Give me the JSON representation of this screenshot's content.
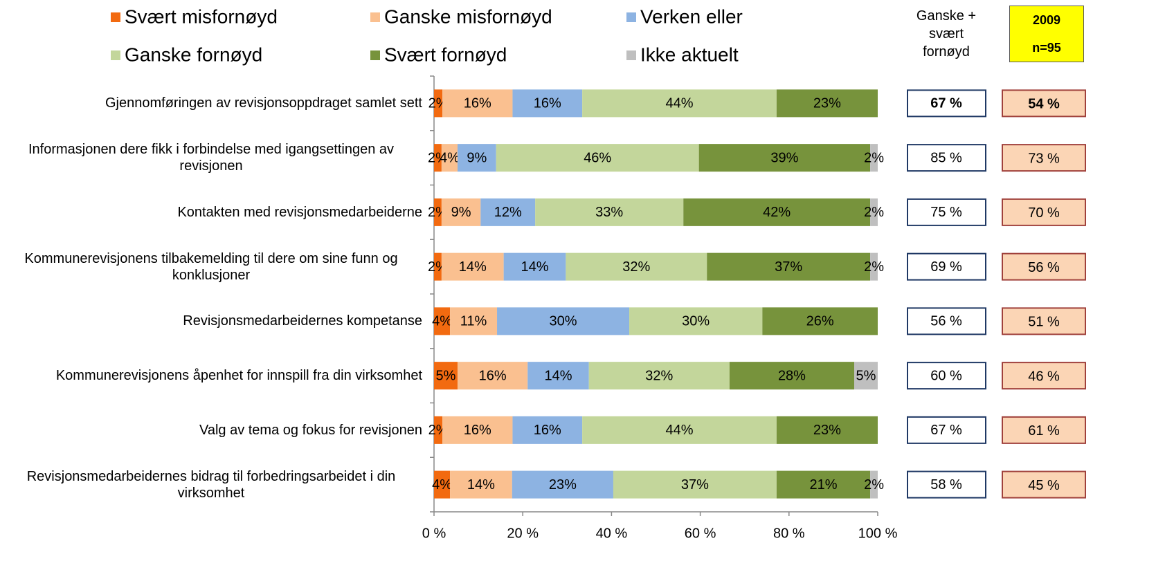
{
  "chart_data": {
    "type": "stacked_barh",
    "categories": [
      "Gjennomføringen av revisjonsoppdraget samlet sett",
      "Informasjonen dere fikk i forbindelse med igangsettingen av revisjonen",
      "Kontakten med revisjonsmedarbeiderne",
      "Kommunerevisjonens tilbakemelding til dere om sine funn og konklusjoner",
      "Revisjonsmedarbeidernes kompetanse",
      "Kommunerevisjonens åpenhet for innspill fra din virksomhet",
      "Valg av tema og fokus for revisjonen",
      "Revisjonsmedarbeidernes bidrag til forbedringsarbeidet i din virksomhet"
    ],
    "series": [
      {
        "name": "Svært misfornøyd",
        "color": "#f26a10",
        "values": [
          1.9,
          1.7,
          1.7,
          1.7,
          3.6,
          5.3,
          1.9,
          3.6
        ],
        "value_labels": [
          "2%",
          "2%",
          "2%",
          "2%",
          "4%",
          "5%",
          "2%",
          "4%"
        ]
      },
      {
        "name": "Ganske misfornøyd",
        "color": "#fac090",
        "values": [
          15.8,
          3.6,
          8.8,
          14.0,
          10.6,
          15.8,
          15.8,
          14.0
        ],
        "value_labels": [
          "16%",
          "4%",
          "9%",
          "14%",
          "11%",
          "16%",
          "16%",
          "14%"
        ]
      },
      {
        "name": "Verken eller",
        "color": "#8db3e2",
        "values": [
          15.7,
          8.7,
          12.3,
          14.0,
          29.8,
          13.8,
          15.7,
          22.8
        ],
        "value_labels": [
          "16%",
          "9%",
          "12%",
          "14%",
          "30%",
          "14%",
          "16%",
          "23%"
        ]
      },
      {
        "name": "Ganske fornøyd",
        "color": "#c3d69b",
        "values": [
          43.8,
          45.7,
          33.4,
          31.8,
          30.0,
          31.7,
          43.8,
          36.8
        ],
        "value_labels": [
          "44%",
          "46%",
          "33%",
          "32%",
          "30%",
          "32%",
          "44%",
          "37%"
        ]
      },
      {
        "name": "Svært fornøyd",
        "color": "#77933c",
        "values": [
          22.8,
          38.6,
          42.1,
          36.8,
          26.0,
          28.1,
          22.8,
          21.1
        ],
        "value_labels": [
          "23%",
          "39%",
          "42%",
          "37%",
          "26%",
          "28%",
          "23%",
          "21%"
        ]
      },
      {
        "name": "Ikke aktuelt",
        "color": "#bfbfbf",
        "values": [
          null,
          1.7,
          1.7,
          1.7,
          null,
          5.3,
          null,
          1.7
        ],
        "value_labels": [
          null,
          "2%",
          "2%",
          "2%",
          null,
          "5%",
          null,
          "2%"
        ]
      }
    ],
    "xlim": [
      0,
      100
    ],
    "xticks": [
      {
        "value": 0,
        "label": "0 %"
      },
      {
        "value": 20,
        "label": "20 %"
      },
      {
        "value": 40,
        "label": "40 %"
      },
      {
        "value": 60,
        "label": "60 %"
      },
      {
        "value": 80,
        "label": "80 %"
      },
      {
        "value": 100,
        "label": "100 %"
      }
    ],
    "satisfied_total": {
      "header": "Ganske + svært fornøyd",
      "values": [
        67,
        85,
        75,
        69,
        56,
        60,
        67,
        58
      ],
      "value_labels": [
        "67 %",
        "85 %",
        "75 %",
        "69 %",
        "56 %",
        "60 %",
        "67 %",
        "58 %"
      ]
    },
    "comparison": {
      "year": "2009",
      "n": "n=95",
      "values": [
        54,
        73,
        70,
        56,
        51,
        46,
        61,
        45
      ],
      "value_labels": [
        "54 %",
        "73 %",
        "70 %",
        "56 %",
        "51 %",
        "46 %",
        "61 %",
        "45 %"
      ]
    }
  }
}
